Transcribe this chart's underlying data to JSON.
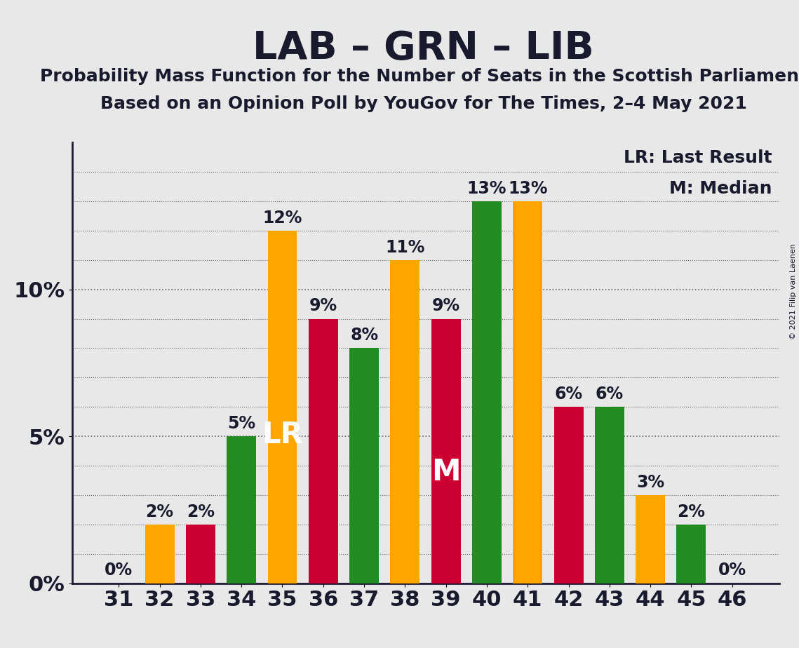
{
  "title": "LAB – GRN – LIB",
  "subtitle1": "Probability Mass Function for the Number of Seats in the Scottish Parliament",
  "subtitle2": "Based on an Opinion Poll by YouGov for The Times, 2–4 May 2021",
  "copyright": "© 2021 Filip van Laenen",
  "seats": [
    31,
    32,
    33,
    34,
    35,
    36,
    37,
    38,
    39,
    40,
    41,
    42,
    43,
    44,
    45,
    46
  ],
  "values": [
    0,
    2,
    2,
    5,
    12,
    9,
    8,
    11,
    9,
    13,
    13,
    6,
    6,
    3,
    2,
    0
  ],
  "colors": [
    "#FFA500",
    "#FFA500",
    "#CC0033",
    "#228B22",
    "#FFA500",
    "#CC0033",
    "#228B22",
    "#FFA500",
    "#CC0033",
    "#228B22",
    "#FFA500",
    "#CC0033",
    "#228B22",
    "#FFA500",
    "#228B22",
    "#CC0033"
  ],
  "lr_seat": 35,
  "median_seat": 39,
  "lr_label": "LR",
  "median_label": "M",
  "legend_lr": "LR: Last Result",
  "legend_m": "M: Median",
  "ytick_labels": [
    "0%",
    "5%",
    "10%"
  ],
  "yticks": [
    0,
    5,
    10
  ],
  "ymax": 15,
  "background_color": "#E8E8E8",
  "title_fontsize": 40,
  "subtitle_fontsize": 18,
  "tick_fontsize": 22,
  "bar_label_fontsize": 17,
  "legend_fontsize": 18,
  "in_bar_label_fontsize": 30,
  "copyright_fontsize": 8,
  "text_color": "#1a1a2e",
  "grid_color": "#666666",
  "bar_width": 0.72
}
